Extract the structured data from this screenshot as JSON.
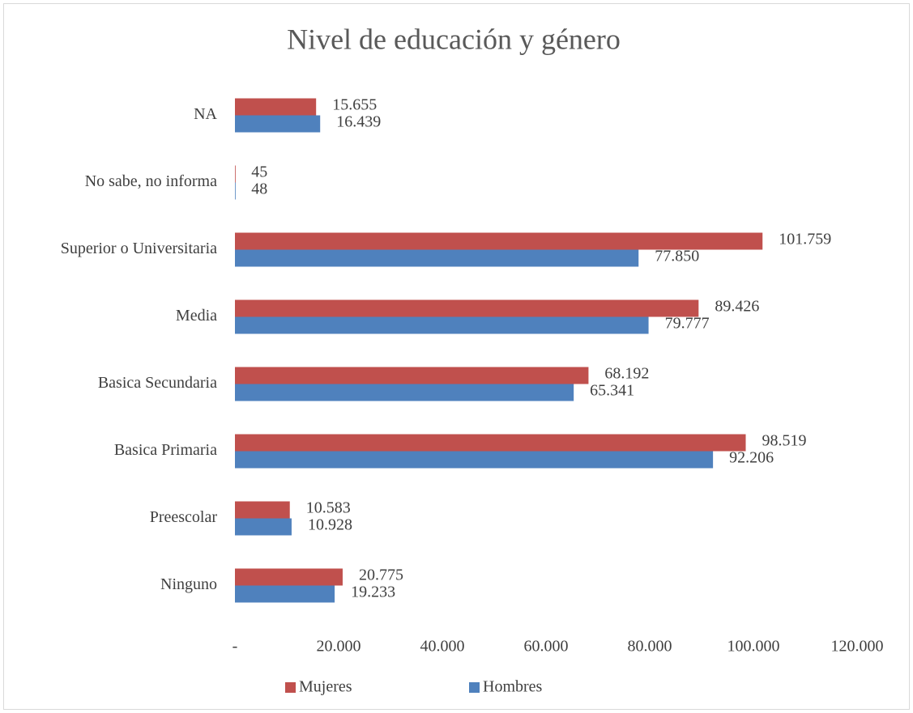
{
  "chart_data": {
    "type": "hbar",
    "title": "Nivel de educación y género",
    "categories": [
      "NA",
      "No sabe, no informa",
      "Superior o Universitaria",
      "Media",
      "Basica Secundaria",
      "Basica Primaria",
      "Preescolar",
      "Ninguno"
    ],
    "series": [
      {
        "name": "Mujeres",
        "color": "#c0504d",
        "values": [
          15655,
          45,
          101759,
          89426,
          68192,
          98519,
          10583,
          20775
        ],
        "value_labels": [
          "15.655",
          "45",
          "101.759",
          "89.426",
          "68.192",
          "98.519",
          "10.583",
          "20.775"
        ]
      },
      {
        "name": "Hombres",
        "color": "#4f81bd",
        "values": [
          16439,
          48,
          77850,
          79777,
          65341,
          92206,
          10928,
          19233
        ],
        "value_labels": [
          "16.439",
          "48",
          "77.850",
          "79.777",
          "65.341",
          "92.206",
          "10.928",
          "19.233"
        ]
      }
    ],
    "xlim": [
      0,
      120000
    ],
    "xticks": [
      {
        "value": 0,
        "label": "-"
      },
      {
        "value": 20000,
        "label": "20.000"
      },
      {
        "value": 40000,
        "label": "40.000"
      },
      {
        "value": 60000,
        "label": "60.000"
      },
      {
        "value": 80000,
        "label": "80.000"
      },
      {
        "value": 100000,
        "label": "100.000"
      },
      {
        "value": 120000,
        "label": "120.000"
      }
    ],
    "grid": false,
    "legend": "bottom"
  }
}
